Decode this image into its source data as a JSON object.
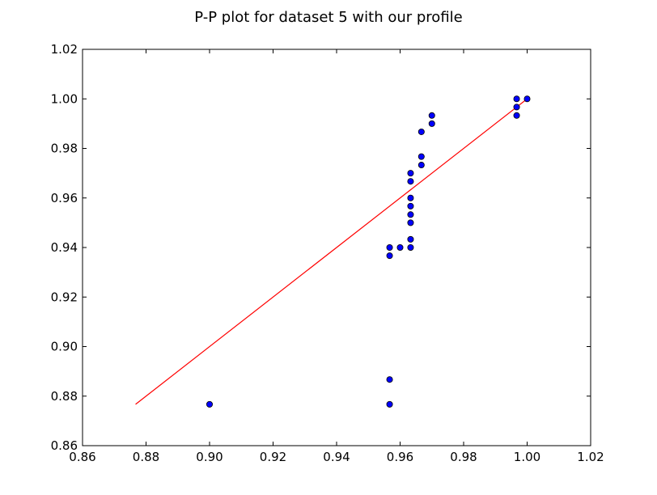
{
  "chart_data": {
    "type": "scatter",
    "title": "P-P plot for dataset 5 with our profile",
    "xlabel": "",
    "ylabel": "",
    "xlim": [
      0.86,
      1.02
    ],
    "ylim": [
      0.86,
      1.02
    ],
    "grid": false,
    "x_ticks": [
      0.86,
      0.88,
      0.9,
      0.92,
      0.94,
      0.96,
      0.98,
      1.0,
      1.02
    ],
    "y_ticks": [
      0.86,
      0.88,
      0.9,
      0.92,
      0.94,
      0.96,
      0.98,
      1.0,
      1.02
    ],
    "x_tick_labels": [
      "0.86",
      "0.88",
      "0.90",
      "0.92",
      "0.94",
      "0.96",
      "0.98",
      "1.00",
      "1.02"
    ],
    "y_tick_labels": [
      "0.86",
      "0.88",
      "0.90",
      "0.92",
      "0.94",
      "0.96",
      "0.98",
      "1.00",
      "1.02"
    ],
    "series": [
      {
        "type": "scatter",
        "color": "#0000ff",
        "points": [
          {
            "x": 0.9,
            "y": 0.8767
          },
          {
            "x": 0.9567,
            "y": 0.8767
          },
          {
            "x": 0.9567,
            "y": 0.8867
          },
          {
            "x": 0.9567,
            "y": 0.9367
          },
          {
            "x": 0.9567,
            "y": 0.94
          },
          {
            "x": 0.96,
            "y": 0.94
          },
          {
            "x": 0.9633,
            "y": 0.94
          },
          {
            "x": 0.9633,
            "y": 0.9433
          },
          {
            "x": 0.9633,
            "y": 0.95
          },
          {
            "x": 0.9633,
            "y": 0.9533
          },
          {
            "x": 0.9633,
            "y": 0.9567
          },
          {
            "x": 0.9633,
            "y": 0.96
          },
          {
            "x": 0.9633,
            "y": 0.9667
          },
          {
            "x": 0.9633,
            "y": 0.97
          },
          {
            "x": 0.9667,
            "y": 0.9733
          },
          {
            "x": 0.9667,
            "y": 0.9767
          },
          {
            "x": 0.9667,
            "y": 0.9867
          },
          {
            "x": 0.97,
            "y": 0.99
          },
          {
            "x": 0.97,
            "y": 0.9933
          },
          {
            "x": 0.9967,
            "y": 0.9933
          },
          {
            "x": 0.9967,
            "y": 0.9967
          },
          {
            "x": 0.9967,
            "y": 1.0
          },
          {
            "x": 1.0,
            "y": 1.0
          }
        ]
      },
      {
        "type": "line",
        "color": "#ff0000",
        "points": [
          {
            "x": 0.8767,
            "y": 0.8767
          },
          {
            "x": 1.0,
            "y": 1.0
          }
        ]
      }
    ]
  }
}
